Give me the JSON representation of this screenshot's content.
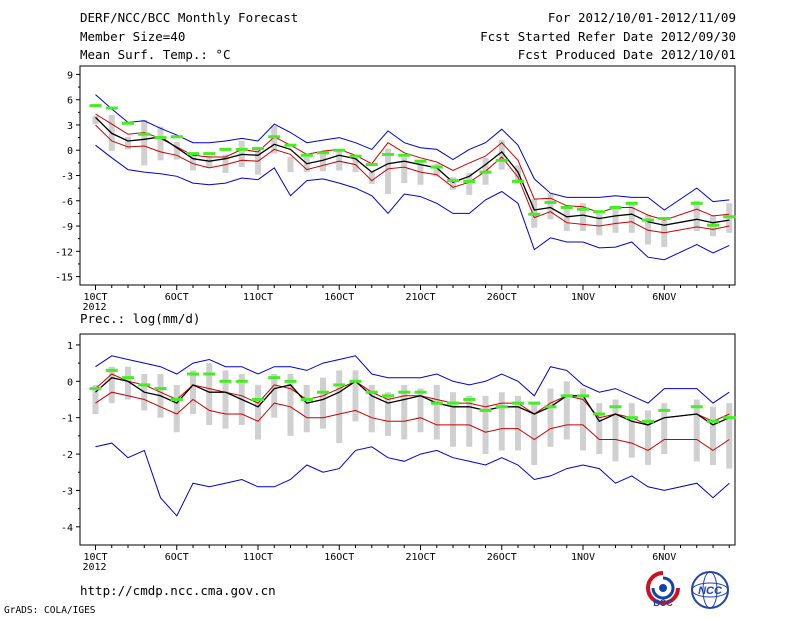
{
  "header": {
    "title": "DERF/NCC/BCC Monthly Forecast",
    "member_size": "Member Size=40",
    "variable": "Mean Surf. Temp.: °C",
    "period": "For 2012/10/01-2012/11/09",
    "started": "Fcst Started Refer Date 2012/09/30",
    "produced": "Fcst Produced Date 2012/10/01"
  },
  "footer": {
    "url": "http://cmdp.ncc.cma.gov.cn",
    "grads": "GrADS: COLA/IGES",
    "logo_bcc": "BCC",
    "logo_ncc": "NCC"
  },
  "colors": {
    "envelope": "#0000cc",
    "spread": "#cc0000",
    "mean": "#000000",
    "box": "#d0d0d0",
    "obs": "#44ee22"
  },
  "chart_data": [
    {
      "type": "line",
      "title": "Mean Surf. Temp.: °C",
      "ylim": [
        -16,
        10
      ],
      "yticks": [
        9,
        6,
        3,
        0,
        -3,
        -6,
        -9,
        -12,
        -15
      ],
      "x": [
        1,
        2,
        3,
        4,
        5,
        6,
        7,
        8,
        9,
        10,
        11,
        12,
        13,
        14,
        15,
        16,
        17,
        18,
        19,
        20,
        21,
        22,
        23,
        24,
        25,
        26,
        27,
        28,
        29,
        30,
        31,
        32,
        33,
        34,
        35,
        36,
        38,
        39,
        40
      ],
      "xticks": [
        {
          "x": 1,
          "label": "10CT",
          "sub": "2012"
        },
        {
          "x": 6,
          "label": "6OCT"
        },
        {
          "x": 11,
          "label": "11OCT"
        },
        {
          "x": 16,
          "label": "16OCT"
        },
        {
          "x": 21,
          "label": "21OCT"
        },
        {
          "x": 26,
          "label": "26OCT"
        },
        {
          "x": 31,
          "label": "1NOV"
        },
        {
          "x": 36,
          "label": "6NOV"
        }
      ],
      "series": [
        {
          "name": "max",
          "values": [
            6.6,
            4.9,
            3.3,
            3.5,
            2.6,
            1.8,
            0.9,
            0.9,
            1.1,
            1.4,
            1.1,
            3.1,
            2.1,
            0.9,
            1.2,
            1.5,
            0.9,
            0.1,
            2.3,
            0.9,
            0.3,
            0.1,
            -1.1,
            0.1,
            0.9,
            2.5,
            0.6,
            -3.4,
            -5.1,
            -5.6,
            -5.6,
            -5.6,
            -5.4,
            -5.6,
            -5.6,
            -7.1,
            -4.5,
            -6.1,
            -5.9
          ]
        },
        {
          "name": "upper",
          "values": [
            4.3,
            3.1,
            1.9,
            2.1,
            1.4,
            0.4,
            -0.6,
            -0.8,
            -0.8,
            0.1,
            -0.2,
            1.6,
            0.6,
            -0.5,
            -0.1,
            0.1,
            -0.6,
            -1.6,
            0.9,
            -0.3,
            -0.9,
            -1.4,
            -2.4,
            -1.5,
            -0.7,
            0.9,
            -1.2,
            -5.8,
            -5.7,
            -6.6,
            -6.7,
            -7.4,
            -6.8,
            -6.8,
            -7.7,
            -8.3,
            -7.0,
            -7.8,
            -7.6
          ]
        },
        {
          "name": "mean",
          "values": [
            3.9,
            2.0,
            1.1,
            1.3,
            1.6,
            0.3,
            -1.0,
            -1.3,
            -1.0,
            -0.5,
            -0.6,
            0.7,
            0.1,
            -1.6,
            -1.2,
            -0.6,
            -1.0,
            -2.6,
            -1.6,
            -1.3,
            -1.7,
            -2.1,
            -3.8,
            -3.1,
            -1.7,
            -0.2,
            -2.6,
            -7.1,
            -6.8,
            -7.9,
            -7.7,
            -8.1,
            -7.8,
            -7.6,
            -8.5,
            -8.9,
            -8.2,
            -8.6,
            -8.3
          ]
        },
        {
          "name": "lower",
          "values": [
            3.0,
            1.1,
            0.4,
            0.5,
            -0.2,
            -0.6,
            -1.6,
            -2.1,
            -1.7,
            -1.2,
            -1.3,
            0.1,
            -0.5,
            -2.3,
            -1.8,
            -1.3,
            -1.7,
            -3.6,
            -2.2,
            -2.0,
            -2.6,
            -2.9,
            -4.4,
            -3.8,
            -2.5,
            -0.8,
            -3.2,
            -8.0,
            -7.3,
            -8.6,
            -8.8,
            -9.0,
            -8.7,
            -8.5,
            -9.5,
            -9.8,
            -9.1,
            -9.4,
            -9.0
          ]
        },
        {
          "name": "min",
          "values": [
            0.6,
            -0.9,
            -2.3,
            -2.6,
            -2.8,
            -3.1,
            -3.9,
            -4.1,
            -3.9,
            -3.3,
            -3.5,
            -2.1,
            -5.4,
            -3.6,
            -3.4,
            -3.9,
            -4.5,
            -5.4,
            -7.5,
            -5.2,
            -5.5,
            -6.3,
            -7.5,
            -7.5,
            -5.9,
            -4.9,
            -6.3,
            -11.8,
            -10.4,
            -10.9,
            -10.9,
            -11.6,
            -11.5,
            -10.9,
            -12.7,
            -13.0,
            -11.2,
            -12.2,
            -11.3
          ]
        }
      ],
      "boxes": {
        "high": [
          4.1,
          4.2,
          1.6,
          3.6,
          2.8,
          1.0,
          -0.3,
          -0.7,
          -0.5,
          1.1,
          0.1,
          2.9,
          -0.8,
          -0.8,
          -0.2,
          0.1,
          -0.9,
          -2.6,
          0.2,
          -0.9,
          -1.4,
          -1.6,
          -3.2,
          -2.7,
          -0.9,
          1.2,
          -1.8,
          -5.8,
          -5.1,
          -6.6,
          -6.3,
          -7.5,
          -6.6,
          -6.2,
          -7.7,
          -8.3,
          -6.0,
          -7.8,
          -6.3
        ],
        "low": [
          3.1,
          -0.1,
          0.1,
          -1.8,
          -1.2,
          -1.1,
          -2.4,
          -2.1,
          -2.7,
          -2.0,
          -2.9,
          -0.4,
          -2.6,
          -2.6,
          -2.5,
          -2.4,
          -2.6,
          -4.0,
          -5.2,
          -3.9,
          -4.1,
          -3.1,
          -4.7,
          -5.3,
          -4.1,
          -2.3,
          -3.9,
          -9.2,
          -8.2,
          -9.6,
          -9.6,
          -10.1,
          -9.8,
          -9.8,
          -11.2,
          -11.5,
          -9.6,
          -10.2,
          -9.8
        ]
      },
      "observed": [
        5.3,
        5.0,
        3.2,
        1.9,
        1.5,
        1.6,
        -0.4,
        -0.4,
        0.1,
        0.1,
        0.2,
        1.6,
        0.6,
        -0.6,
        -0.3,
        0.0,
        -0.7,
        -1.7,
        -0.5,
        -0.6,
        -1.3,
        -2.0,
        -3.6,
        -3.7,
        -2.6,
        -1.2,
        -3.7,
        -7.6,
        -6.2,
        -6.8,
        -7.0,
        -7.3,
        -6.8,
        -6.3,
        -8.3,
        -8.1,
        -6.3,
        -8.9,
        -7.9
      ]
    },
    {
      "type": "line",
      "title": "Prec.: log(mm/d)",
      "ylim": [
        -4.5,
        1.3
      ],
      "yticks": [
        1,
        0,
        -1,
        -2,
        -3,
        -4
      ],
      "x": [
        1,
        2,
        3,
        4,
        5,
        6,
        7,
        8,
        9,
        10,
        11,
        12,
        13,
        14,
        15,
        16,
        17,
        18,
        19,
        20,
        21,
        22,
        23,
        24,
        25,
        26,
        27,
        28,
        29,
        30,
        31,
        32,
        33,
        34,
        35,
        36,
        38,
        39,
        40
      ],
      "xticks": [
        {
          "x": 1,
          "label": "10CT",
          "sub": "2012"
        },
        {
          "x": 6,
          "label": "6OCT"
        },
        {
          "x": 11,
          "label": "11OCT"
        },
        {
          "x": 16,
          "label": "16OCT"
        },
        {
          "x": 21,
          "label": "21OCT"
        },
        {
          "x": 26,
          "label": "26OCT"
        },
        {
          "x": 31,
          "label": "1NOV"
        },
        {
          "x": 36,
          "label": "6NOV"
        }
      ],
      "series": [
        {
          "name": "max",
          "values": [
            0.4,
            0.7,
            0.6,
            0.5,
            0.4,
            0.2,
            0.5,
            0.6,
            0.4,
            0.4,
            0.2,
            0.4,
            0.4,
            0.3,
            0.5,
            0.6,
            0.7,
            0.2,
            0.1,
            0.1,
            0.1,
            0.2,
            0.0,
            -0.1,
            0.0,
            0.2,
            0.0,
            -0.4,
            0.4,
            0.3,
            -0.1,
            -0.3,
            -0.2,
            -0.4,
            -0.6,
            -0.2,
            -0.2,
            -0.6,
            -0.3
          ]
        },
        {
          "name": "upper",
          "values": [
            -0.2,
            0.2,
            0.0,
            -0.1,
            -0.3,
            -0.5,
            -0.1,
            -0.2,
            -0.3,
            -0.4,
            -0.6,
            -0.1,
            -0.2,
            -0.5,
            -0.4,
            -0.2,
            0.0,
            -0.3,
            -0.5,
            -0.4,
            -0.4,
            -0.5,
            -0.6,
            -0.6,
            -0.7,
            -0.6,
            -0.6,
            -0.9,
            -0.6,
            -0.4,
            -0.5,
            -1.0,
            -0.9,
            -1.0,
            -1.2,
            -1.0,
            -0.9,
            -1.1,
            -0.9
          ]
        },
        {
          "name": "mean",
          "values": [
            -0.3,
            0.1,
            0.0,
            -0.3,
            -0.4,
            -0.6,
            -0.1,
            -0.3,
            -0.3,
            -0.5,
            -0.7,
            -0.2,
            -0.1,
            -0.6,
            -0.5,
            -0.3,
            0.0,
            -0.4,
            -0.6,
            -0.5,
            -0.4,
            -0.6,
            -0.7,
            -0.7,
            -0.8,
            -0.7,
            -0.7,
            -0.9,
            -0.7,
            -0.4,
            -0.4,
            -1.1,
            -0.9,
            -1.1,
            -1.2,
            -1.0,
            -0.9,
            -1.2,
            -1.0
          ]
        },
        {
          "name": "lower",
          "values": [
            -0.6,
            -0.3,
            -0.4,
            -0.5,
            -0.7,
            -0.9,
            -0.5,
            -0.8,
            -0.9,
            -0.9,
            -1.1,
            -0.6,
            -0.7,
            -1.0,
            -1.0,
            -0.9,
            -0.8,
            -1.0,
            -1.1,
            -1.1,
            -1.0,
            -1.2,
            -1.2,
            -1.2,
            -1.4,
            -1.3,
            -1.3,
            -1.6,
            -1.3,
            -1.2,
            -1.2,
            -1.6,
            -1.6,
            -1.7,
            -1.9,
            -1.6,
            -1.6,
            -1.9,
            -1.6
          ]
        },
        {
          "name": "min",
          "values": [
            -1.8,
            -1.7,
            -2.1,
            -1.9,
            -3.2,
            -3.7,
            -2.8,
            -2.9,
            -2.8,
            -2.7,
            -2.9,
            -2.9,
            -2.7,
            -2.3,
            -2.5,
            -2.4,
            -1.9,
            -1.8,
            -2.1,
            -2.2,
            -2.0,
            -1.9,
            -2.1,
            -2.2,
            -2.3,
            -2.1,
            -2.3,
            -2.7,
            -2.6,
            -2.4,
            -2.3,
            -2.4,
            -2.8,
            -2.6,
            -2.9,
            -3.0,
            -2.8,
            -3.2,
            -2.8
          ]
        }
      ],
      "boxes": {
        "high": [
          -0.1,
          0.4,
          0.4,
          0.2,
          0.2,
          -0.1,
          0.3,
          0.5,
          0.3,
          0.2,
          -0.1,
          0.2,
          0.2,
          -0.1,
          0.1,
          0.3,
          0.3,
          -0.1,
          -0.3,
          -0.1,
          -0.2,
          -0.1,
          -0.3,
          -0.4,
          -0.4,
          -0.3,
          -0.4,
          -0.6,
          -0.2,
          0.0,
          -0.2,
          -0.6,
          -0.5,
          -0.6,
          -0.8,
          -0.6,
          -0.5,
          -0.7,
          -0.6
        ],
        "low": [
          -0.9,
          -0.6,
          -0.5,
          -0.8,
          -1.0,
          -1.4,
          -0.9,
          -1.2,
          -1.3,
          -1.2,
          -1.6,
          -1.0,
          -1.5,
          -1.4,
          -1.3,
          -1.7,
          -1.1,
          -1.4,
          -1.5,
          -1.6,
          -1.4,
          -1.6,
          -1.8,
          -1.8,
          -2.0,
          -1.9,
          -1.9,
          -2.3,
          -1.8,
          -1.6,
          -1.9,
          -2.0,
          -2.2,
          -2.1,
          -2.3,
          -2.0,
          -2.2,
          -2.3,
          -2.4
        ]
      },
      "observed": [
        -0.2,
        0.3,
        0.1,
        -0.1,
        -0.2,
        -0.5,
        0.2,
        0.2,
        0.0,
        0.0,
        -0.5,
        0.1,
        0.0,
        -0.5,
        -0.3,
        -0.1,
        0.0,
        -0.3,
        -0.4,
        -0.3,
        -0.3,
        -0.6,
        -0.6,
        -0.5,
        -0.8,
        -0.7,
        -0.6,
        -0.6,
        -0.7,
        -0.4,
        -0.4,
        -0.9,
        -0.7,
        -1.0,
        -1.1,
        -0.8,
        -0.7,
        -1.1,
        -1.0
      ]
    }
  ]
}
